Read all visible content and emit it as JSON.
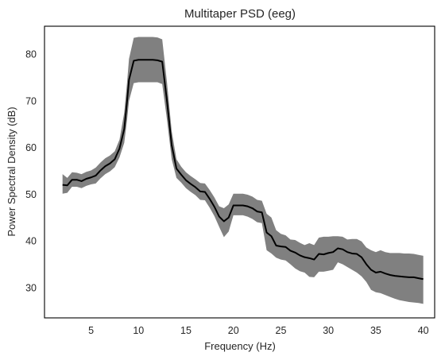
{
  "chart_data": {
    "type": "line",
    "title": "Multitaper PSD (eeg)",
    "xlabel": "Frequency (Hz)",
    "ylabel": "Power Spectral Density (dB)",
    "xlim": [
      0.1,
      41.2
    ],
    "ylim": [
      23.5,
      86
    ],
    "xticks": [
      5,
      10,
      15,
      20,
      25,
      30,
      35,
      40
    ],
    "yticks": [
      30,
      40,
      50,
      60,
      70,
      80
    ],
    "grid": false,
    "legend": "none",
    "colors": {
      "line": "#000000",
      "band": "#808080",
      "frame": "#000000"
    },
    "series": [
      {
        "x": [
          2.0,
          2.5,
          3.0,
          3.5,
          4.0,
          4.5,
          5.0,
          5.5,
          6.0,
          6.5,
          7.0,
          7.5,
          8.0,
          8.5,
          8.8,
          9.0,
          9.5,
          10.0,
          10.5,
          11.0,
          11.5,
          12.0,
          12.5,
          13.0,
          13.5,
          14.0,
          14.5,
          15.0,
          15.5,
          16.0,
          16.5,
          17.0,
          17.5,
          18.0,
          18.5,
          19.0,
          19.5,
          20.0,
          20.5,
          21.0,
          21.5,
          22.0,
          22.5,
          23.0,
          23.5,
          24.0,
          24.5,
          25.0,
          25.5,
          26.0,
          26.5,
          27.0,
          27.5,
          28.0,
          28.5,
          29.0,
          29.5,
          30.0,
          30.5,
          31.0,
          31.5,
          32.0,
          32.5,
          33.0,
          33.5,
          34.0,
          34.5,
          35.0,
          35.5,
          36.0,
          36.5,
          37.0,
          37.5,
          38.0,
          38.5,
          39.0,
          39.5,
          40.0
        ],
        "values": [
          52.0,
          51.9,
          53.1,
          53.1,
          52.8,
          53.3,
          53.6,
          54.0,
          55.1,
          56.0,
          56.6,
          57.5,
          59.8,
          64.0,
          70.0,
          74.5,
          78.6,
          78.8,
          78.8,
          78.8,
          78.8,
          78.7,
          78.4,
          70.0,
          60.5,
          55.5,
          54.2,
          53.0,
          52.2,
          51.5,
          50.6,
          50.5,
          49.0,
          47.3,
          45.2,
          44.2,
          45.0,
          47.6,
          47.6,
          47.6,
          47.4,
          47.0,
          46.3,
          46.1,
          41.8,
          41.0,
          39.0,
          38.8,
          38.7,
          37.9,
          37.5,
          36.9,
          36.5,
          36.3,
          36.0,
          37.2,
          37.1,
          37.4,
          37.6,
          38.4,
          38.2,
          37.6,
          37.3,
          37.2,
          36.5,
          35.0,
          33.8,
          33.2,
          33.4,
          33.0,
          32.7,
          32.5,
          32.4,
          32.3,
          32.2,
          32.2,
          32.0,
          31.8
        ],
        "lower": [
          50.1,
          50.3,
          51.6,
          51.6,
          51.3,
          51.8,
          52.1,
          52.3,
          53.4,
          54.3,
          54.9,
          55.8,
          57.9,
          61.0,
          66.0,
          70.0,
          73.8,
          74.0,
          74.0,
          74.0,
          74.0,
          74.0,
          73.6,
          66.0,
          57.5,
          53.5,
          52.5,
          51.3,
          50.5,
          49.8,
          48.8,
          48.7,
          47.1,
          45.3,
          43.0,
          40.8,
          42.0,
          45.5,
          45.5,
          45.5,
          45.2,
          44.7,
          44.0,
          43.8,
          38.0,
          37.3,
          36.4,
          36.0,
          35.8,
          35.0,
          34.1,
          33.5,
          33.2,
          32.3,
          32.2,
          33.4,
          33.4,
          33.6,
          33.8,
          35.4,
          35.0,
          34.4,
          33.8,
          33.2,
          32.4,
          31.2,
          29.5,
          29.0,
          28.8,
          28.4,
          28.0,
          27.6,
          27.3,
          27.1,
          26.9,
          26.8,
          26.7,
          26.5
        ],
        "upper": [
          54.3,
          53.5,
          54.7,
          54.6,
          54.3,
          54.8,
          55.1,
          55.7,
          56.8,
          57.7,
          58.3,
          59.2,
          61.7,
          67.5,
          74.0,
          79.0,
          83.5,
          83.7,
          83.7,
          83.7,
          83.7,
          83.6,
          83.2,
          74.0,
          63.5,
          57.5,
          55.9,
          54.7,
          53.9,
          53.2,
          52.4,
          52.3,
          50.9,
          49.3,
          47.4,
          47.0,
          47.8,
          50.1,
          50.1,
          50.1,
          49.9,
          49.5,
          48.8,
          48.6,
          45.8,
          45.0,
          42.3,
          41.5,
          41.2,
          40.3,
          40.2,
          39.6,
          39.1,
          39.5,
          39.1,
          40.7,
          40.9,
          40.9,
          41.0,
          41.0,
          40.9,
          40.3,
          40.4,
          40.4,
          39.9,
          38.6,
          38.0,
          37.6,
          38.0,
          37.6,
          37.4,
          37.4,
          37.4,
          37.3,
          37.3,
          37.2,
          37.0,
          36.8
        ]
      }
    ]
  }
}
